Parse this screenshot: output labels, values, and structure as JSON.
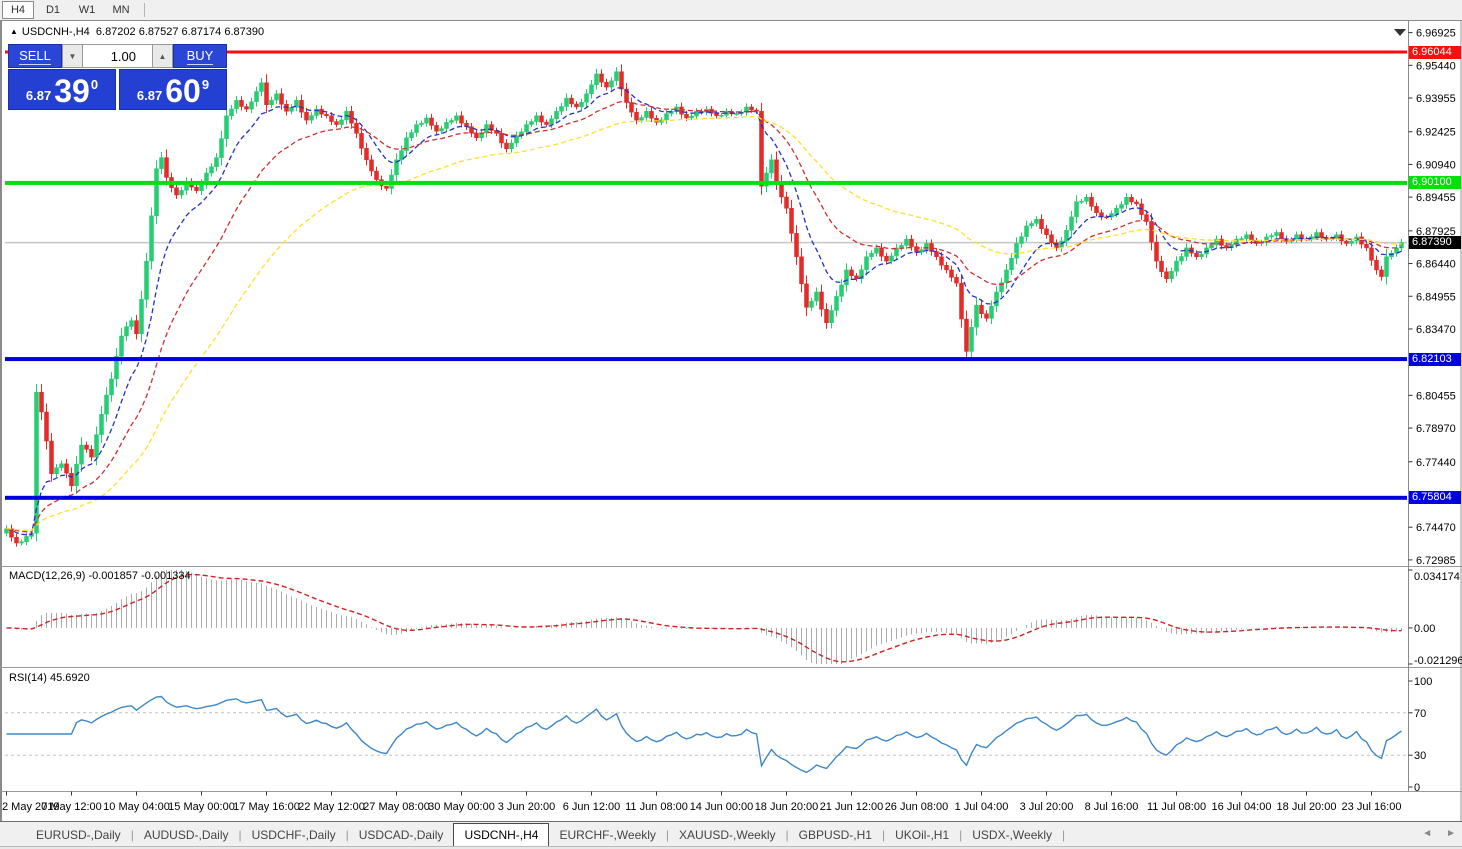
{
  "toolbar": {
    "timeframes": [
      {
        "label": "H4",
        "active": true
      },
      {
        "label": "D1",
        "active": false
      },
      {
        "label": "W1",
        "active": false
      },
      {
        "label": "MN",
        "active": false
      }
    ]
  },
  "chart": {
    "title_arrow": "▲",
    "symbol_title": "USDCNH-,H4",
    "ohlc_values": "6.87202 6.87527 6.87174 6.87390",
    "trade_panel": {
      "sell_label": "SELL",
      "buy_label": "BUY",
      "volume": "1.00",
      "spin_down_icon": "▼",
      "spin_up_icon": "▲",
      "sell_price_small": "6.87",
      "sell_price_big": "39",
      "sell_price_sup": "0",
      "buy_price_small": "6.87",
      "buy_price_big": "60",
      "buy_price_sup": "9"
    },
    "price_axis_labels": [
      "6.96925",
      "6.95440",
      "6.93955",
      "6.92425",
      "6.90940",
      "6.89455",
      "6.87925",
      "6.86440",
      "6.84955",
      "6.83470",
      "6.80455",
      "6.78970",
      "6.77440",
      "6.74470",
      "6.72985"
    ],
    "x_labels": [
      "2 May 2019",
      "7 May 12:00",
      "10 May 04:00",
      "15 May 00:00",
      "17 May 16:00",
      "22 May 12:00",
      "27 May 08:00",
      "30 May 00:00",
      "3 Jun 20:00",
      "6 Jun 12:00",
      "11 Jun 08:00",
      "14 Jun 00:00",
      "18 Jun 20:00",
      "21 Jun 12:00",
      "26 Jun 08:00",
      "1 Jul 04:00",
      "3 Jul 20:00",
      "8 Jul 16:00",
      "11 Jul 08:00",
      "16 Jul 04:00",
      "18 Jul 20:00",
      "23 Jul 16:00"
    ]
  },
  "macd_panel": {
    "label": "MACD(12,26,9) -0.001857 -0.001334",
    "axis_labels": [
      {
        "label": "0.034174",
        "value": 0.034174
      },
      {
        "label": "0.00",
        "value": 0.0
      },
      {
        "label": "-0.021296",
        "value": -0.021296
      }
    ]
  },
  "rsi_panel": {
    "label": "RSI(14) 45.6920",
    "axis_labels": [
      {
        "label": "100",
        "value": 100
      },
      {
        "label": "70",
        "value": 70
      },
      {
        "label": "30",
        "value": 30
      },
      {
        "label": "0",
        "value": 0
      }
    ]
  },
  "tabs": {
    "items": [
      {
        "label": "EURUSD-,Daily",
        "active": false
      },
      {
        "label": "AUDUSD-,Daily",
        "active": false
      },
      {
        "label": "USDCHF-,Daily",
        "active": false
      },
      {
        "label": "USDCAD-,Daily",
        "active": false
      },
      {
        "label": "USDCNH-,H4",
        "active": true
      },
      {
        "label": "EURCHF-,Weekly",
        "active": false
      },
      {
        "label": "XAUUSD-,Weekly",
        "active": false
      },
      {
        "label": "GBPUSD-,H1",
        "active": false
      },
      {
        "label": "UKOil-,H1",
        "active": false
      },
      {
        "label": "USDX-,Weekly",
        "active": false
      }
    ],
    "scroll_left_icon": "◄",
    "scroll_right_icon": "►"
  },
  "colors": {
    "candle_up": "#25ce72",
    "candle_down": "#e42b28",
    "ma_fast": "#2430c8",
    "ma_mid": "#d03030",
    "ma_slow": "#ffdf29",
    "macd_hist": "#ababab",
    "macd_signal": "#cc2222",
    "rsi_line": "#3e87c9",
    "current_price_line": "#c6c6c6",
    "grid_dash": "#c0c0c0"
  },
  "chart_data": [
    {
      "type": "candlestick",
      "title": "USDCNH-,H4",
      "x_range": [
        "2 May 2019",
        "23 Jul 2019 16:00"
      ],
      "ylim": [
        6.72985,
        6.96925
      ],
      "bar_count": 280,
      "last_close": 6.8739,
      "open_high_low_close_current": [
        6.87202,
        6.87527,
        6.87174,
        6.8739
      ],
      "levels": [
        {
          "label": "6.96044",
          "price": 6.96044,
          "color": "#ff0d0d",
          "thickness": 3
        },
        {
          "label": "6.90100",
          "price": 6.901,
          "color": "#00e104",
          "thickness": 4
        },
        {
          "label": "6.82103",
          "price": 6.82103,
          "color": "#0202df",
          "thickness": 4
        },
        {
          "label": "6.75804",
          "price": 6.75804,
          "color": "#0202df",
          "thickness": 4
        }
      ],
      "current_price": {
        "label": "6.87390",
        "price": 6.8739
      },
      "moving_averages": [
        {
          "period": 10,
          "color": "#2430c8",
          "style": "dashed"
        },
        {
          "period": 24,
          "color": "#d03030",
          "style": "dashed"
        },
        {
          "period": 52,
          "color": "#ffdf29",
          "style": "dashed"
        }
      ],
      "price_path": [
        [
          0,
          6.744
        ],
        [
          2,
          6.7375
        ],
        [
          4,
          6.7405
        ],
        [
          5,
          6.742
        ],
        [
          6,
          6.806
        ],
        [
          7,
          6.797
        ],
        [
          9,
          6.769
        ],
        [
          11,
          6.7735
        ],
        [
          13,
          6.7635
        ],
        [
          15,
          6.782
        ],
        [
          17,
          6.7765
        ],
        [
          19,
          6.796
        ],
        [
          21,
          6.812
        ],
        [
          23,
          6.8315
        ],
        [
          25,
          6.8385
        ],
        [
          26,
          6.8325
        ],
        [
          28,
          6.8655
        ],
        [
          30,
          6.9075
        ],
        [
          31,
          6.9125
        ],
        [
          32,
          6.9035
        ],
        [
          34,
          6.8955
        ],
        [
          36,
          6.9015
        ],
        [
          38,
          6.8975
        ],
        [
          40,
          6.9055
        ],
        [
          42,
          6.9125
        ],
        [
          44,
          6.9315
        ],
        [
          46,
          6.9385
        ],
        [
          48,
          6.9345
        ],
        [
          50,
          6.9425
        ],
        [
          51,
          6.9465
        ],
        [
          52,
          6.9365
        ],
        [
          54,
          6.9415
        ],
        [
          56,
          6.9335
        ],
        [
          58,
          6.9385
        ],
        [
          60,
          6.9295
        ],
        [
          62,
          6.9345
        ],
        [
          64,
          6.9315
        ],
        [
          66,
          6.9275
        ],
        [
          68,
          6.9335
        ],
        [
          70,
          6.9235
        ],
        [
          72,
          6.9115
        ],
        [
          74,
          6.9025
        ],
        [
          76,
          6.8985
        ],
        [
          78,
          6.9115
        ],
        [
          80,
          6.9215
        ],
        [
          82,
          6.9275
        ],
        [
          84,
          6.9305
        ],
        [
          86,
          6.9245
        ],
        [
          88,
          6.9285
        ],
        [
          90,
          6.9315
        ],
        [
          92,
          6.9265
        ],
        [
          94,
          6.9215
        ],
        [
          96,
          6.9275
        ],
        [
          98,
          6.9235
        ],
        [
          100,
          6.9165
        ],
        [
          102,
          6.9225
        ],
        [
          104,
          6.9275
        ],
        [
          106,
          6.9315
        ],
        [
          108,
          6.9275
        ],
        [
          110,
          6.9335
        ],
        [
          112,
          6.9395
        ],
        [
          114,
          6.9355
        ],
        [
          116,
          6.9415
        ],
        [
          118,
          6.9505
        ],
        [
          120,
          6.9445
        ],
        [
          122,
          6.9515
        ],
        [
          124,
          6.9375
        ],
        [
          126,
          6.9295
        ],
        [
          128,
          6.9335
        ],
        [
          130,
          6.9285
        ],
        [
          132,
          6.9325
        ],
        [
          134,
          6.9355
        ],
        [
          136,
          6.9305
        ],
        [
          138,
          6.9335
        ],
        [
          140,
          6.9345
        ],
        [
          142,
          6.9315
        ],
        [
          144,
          6.9335
        ],
        [
          146,
          6.9325
        ],
        [
          148,
          6.9355
        ],
        [
          150,
          6.9335
        ],
        [
          151,
          6.8995
        ],
        [
          152,
          6.9055
        ],
        [
          153,
          6.9115
        ],
        [
          154,
          6.9015
        ],
        [
          156,
          6.8895
        ],
        [
          158,
          6.8675
        ],
        [
          160,
          6.8445
        ],
        [
          162,
          6.8515
        ],
        [
          164,
          6.8375
        ],
        [
          166,
          6.8495
        ],
        [
          168,
          6.8615
        ],
        [
          170,
          6.8575
        ],
        [
          172,
          6.8675
        ],
        [
          174,
          6.8715
        ],
        [
          176,
          6.8655
        ],
        [
          178,
          6.8715
        ],
        [
          180,
          6.8755
        ],
        [
          182,
          6.8695
        ],
        [
          184,
          6.8735
        ],
        [
          186,
          6.8675
        ],
        [
          188,
          6.8615
        ],
        [
          190,
          6.8555
        ],
        [
          192,
          6.8245
        ],
        [
          193,
          6.8355
        ],
        [
          194,
          6.8455
        ],
        [
          196,
          6.8395
        ],
        [
          198,
          6.8515
        ],
        [
          200,
          6.8615
        ],
        [
          202,
          6.8735
        ],
        [
          204,
          6.8815
        ],
        [
          206,
          6.8845
        ],
        [
          208,
          6.8775
        ],
        [
          210,
          6.8715
        ],
        [
          212,
          6.8795
        ],
        [
          214,
          6.8925
        ],
        [
          216,
          6.8945
        ],
        [
          218,
          6.8875
        ],
        [
          220,
          6.8855
        ],
        [
          222,
          6.8895
        ],
        [
          224,
          6.8945
        ],
        [
          226,
          6.8915
        ],
        [
          228,
          6.8835
        ],
        [
          230,
          6.8655
        ],
        [
          232,
          6.8575
        ],
        [
          234,
          6.8655
        ],
        [
          236,
          6.8715
        ],
        [
          238,
          6.8675
        ],
        [
          240,
          6.8715
        ],
        [
          242,
          6.8755
        ],
        [
          244,
          6.8715
        ],
        [
          246,
          6.8755
        ],
        [
          248,
          6.8775
        ],
        [
          250,
          6.8735
        ],
        [
          252,
          6.8765
        ],
        [
          254,
          6.8785
        ],
        [
          256,
          6.8745
        ],
        [
          258,
          6.8775
        ],
        [
          260,
          6.8755
        ],
        [
          262,
          6.8785
        ],
        [
          264,
          6.8755
        ],
        [
          266,
          6.8775
        ],
        [
          268,
          6.8735
        ],
        [
          270,
          6.8765
        ],
        [
          272,
          6.8715
        ],
        [
          274,
          6.8615
        ],
        [
          275,
          6.8585
        ],
        [
          276,
          6.8675
        ],
        [
          278,
          6.8715
        ],
        [
          279,
          6.8739
        ]
      ],
      "render_hints": {
        "zig_amplitude": 0.0016,
        "zig_pattern": [
          0.5,
          -0.4,
          0.3,
          -0.55,
          0.45,
          -0.25,
          0.35,
          -0.5
        ]
      }
    },
    {
      "type": "bar",
      "name": "MACD(12,26,9)",
      "params": {
        "fast": 12,
        "slow": 26,
        "signal": 9
      },
      "ylim": [
        -0.021296,
        0.034174
      ],
      "current_values": [
        -0.001857,
        -0.001334
      ],
      "derived_from": "price_path"
    },
    {
      "type": "line",
      "name": "RSI(14)",
      "params": {
        "period": 14
      },
      "ylim": [
        0,
        100
      ],
      "grid_levels": [
        70,
        30
      ],
      "current_value": 45.692,
      "derived_from": "price_path"
    }
  ]
}
